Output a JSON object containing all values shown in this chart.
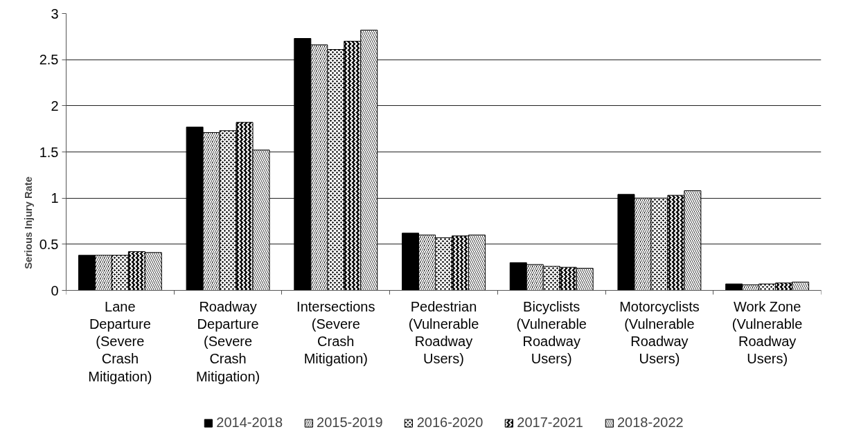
{
  "chart_data": {
    "type": "bar",
    "ylabel": "Serious Injury Rate",
    "categories": [
      "Lane\nDeparture\n(Severe\nCrash\nMitigation)",
      "Roadway\nDeparture\n(Severe\nCrash\nMitigation)",
      "Intersections\n(Severe\nCrash\nMitigation)",
      "Pedestrian\n(Vulnerable\nRoadway\nUsers)",
      "Bicyclists\n(Vulnerable\nRoadway\nUsers)",
      "Motorcyclists\n(Vulnerable\nRoadway\nUsers)",
      "Work Zone\n(Vulnerable\nRoadway\nUsers)"
    ],
    "series": [
      {
        "name": "2014-2018",
        "color": "#000000",
        "values": [
          0.38,
          1.77,
          2.73,
          0.62,
          0.3,
          1.04,
          0.07
        ]
      },
      {
        "name": "2015-2019",
        "color": "#000000",
        "values": [
          0.38,
          1.71,
          2.66,
          0.6,
          0.28,
          1.0,
          0.06
        ]
      },
      {
        "name": "2016-2020",
        "color": "#000000",
        "values": [
          0.38,
          1.73,
          2.61,
          0.57,
          0.26,
          1.0,
          0.07
        ]
      },
      {
        "name": "2017-2021",
        "color": "#000000",
        "values": [
          0.42,
          1.82,
          2.7,
          0.59,
          0.25,
          1.03,
          0.08
        ]
      },
      {
        "name": "2018-2022",
        "color": "#000000",
        "values": [
          0.41,
          1.52,
          2.82,
          0.6,
          0.24,
          1.08,
          0.09
        ]
      }
    ],
    "ylim": [
      0,
      3
    ],
    "yticks": [
      0,
      0.5,
      1,
      1.5,
      2,
      2.5,
      3
    ],
    "grid": "y",
    "legend": "bottom"
  }
}
